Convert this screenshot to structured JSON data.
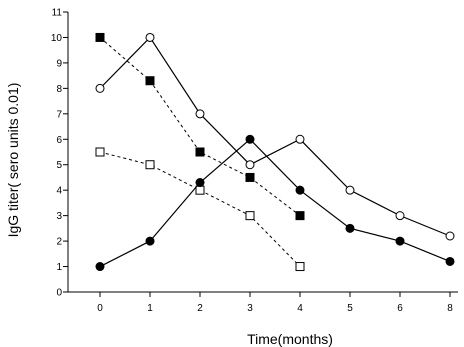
{
  "chart_data": {
    "type": "line",
    "title": "",
    "xlabel": "Time(months)",
    "ylabel": "IgG titer( sero units 0.01)",
    "x_ticks": [
      "0",
      "1",
      "2",
      "3",
      "4",
      "5",
      "6",
      "8"
    ],
    "y_ticks": [
      "0",
      "1",
      "2",
      "3",
      "4",
      "5",
      "6",
      "7",
      "8",
      "9",
      "10",
      "11"
    ],
    "ylim": [
      0,
      11
    ],
    "grid": false,
    "legend": "none",
    "series": [
      {
        "marker": "filled-square",
        "line": "dotted",
        "points": [
          [
            "0",
            10
          ],
          [
            "1",
            8.3
          ],
          [
            "2",
            5.5
          ],
          [
            "3",
            4.5
          ],
          [
            "4",
            3
          ]
        ]
      },
      {
        "marker": "open-circle",
        "line": "solid",
        "points": [
          [
            "0",
            8
          ],
          [
            "1",
            10
          ],
          [
            "2",
            7
          ],
          [
            "3",
            5
          ],
          [
            "4",
            6
          ],
          [
            "5",
            4
          ],
          [
            "6",
            3
          ],
          [
            "8",
            2.2
          ]
        ]
      },
      {
        "marker": "open-square",
        "line": "dotted",
        "points": [
          [
            "0",
            5.5
          ],
          [
            "1",
            5
          ],
          [
            "2",
            4
          ],
          [
            "3",
            3
          ],
          [
            "4",
            1
          ]
        ]
      },
      {
        "marker": "filled-circle",
        "line": "solid",
        "points": [
          [
            "0",
            1
          ],
          [
            "1",
            2
          ],
          [
            "2",
            4.3
          ],
          [
            "3",
            6
          ],
          [
            "4",
            4
          ],
          [
            "5",
            2.5
          ],
          [
            "6",
            2
          ],
          [
            "8",
            1.2
          ]
        ]
      }
    ]
  }
}
